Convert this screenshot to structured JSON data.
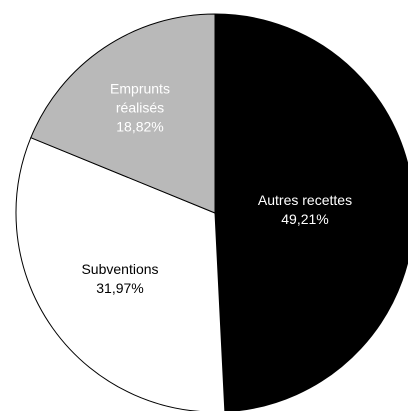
{
  "chart_data": {
    "type": "pie",
    "categories": [
      "Autres recettes",
      "Subventions",
      "Emprunts réalisés"
    ],
    "values": [
      49.21,
      31.97,
      18.82
    ],
    "value_labels": [
      "49,21%",
      "31,97%",
      "18,82%"
    ],
    "colors": [
      "#000000",
      "#ffffff",
      "#b9b9b9"
    ]
  }
}
